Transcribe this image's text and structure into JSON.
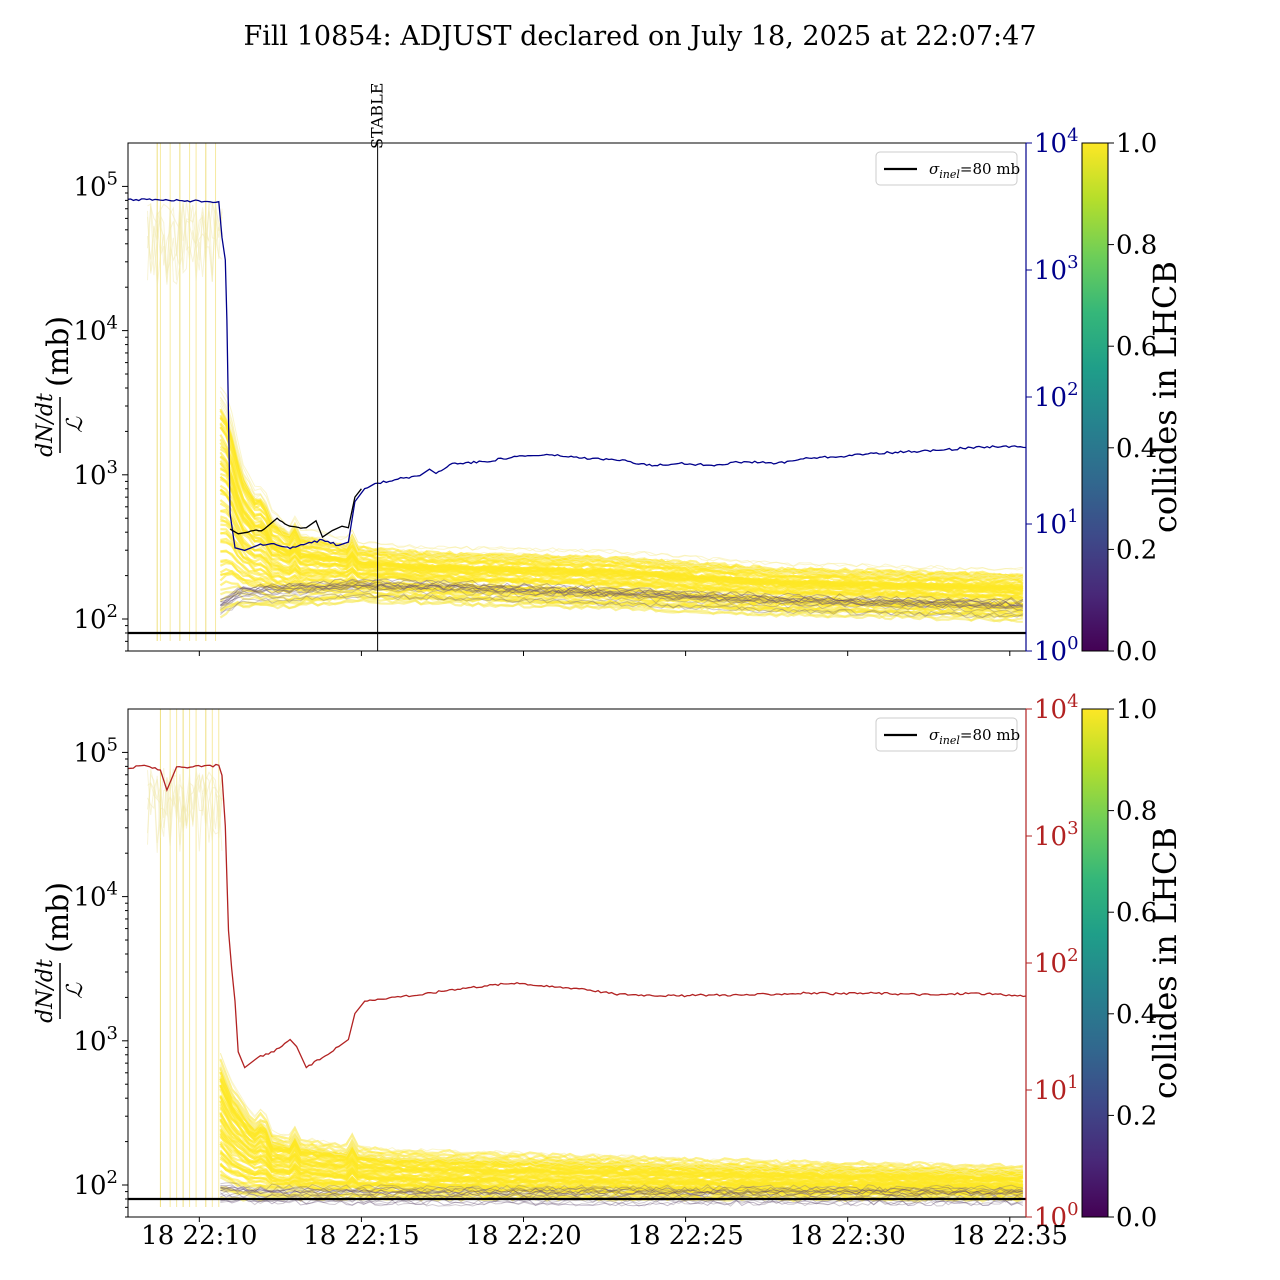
{
  "figure": {
    "title": "Fill 10854: ADJUST declared on July 18, 2025 at 22:07:47",
    "colors": {
      "top_right_axis": "#00008b",
      "bottom_right_axis": "#b22222",
      "reference_line": "#000000",
      "viridis": [
        "#440154",
        "#482878",
        "#3e4989",
        "#31688e",
        "#26828e",
        "#1f9e89",
        "#35b779",
        "#6ece58",
        "#b5de2b",
        "#fde725"
      ]
    }
  },
  "chart_data": [
    {
      "type": "line",
      "panel": "top",
      "ylabel_fraction_num": "dN/dt",
      "ylabel_fraction_den": "ℒ",
      "ylabel_unit": "(mb)",
      "yscale": "log",
      "ylim": [
        60,
        200000
      ],
      "yticks": [
        {
          "exp": "2",
          "value": 100
        },
        {
          "exp": "3",
          "value": 1000
        },
        {
          "exp": "4",
          "value": 10000
        },
        {
          "exp": "5",
          "value": 100000
        }
      ],
      "xlim_minutes": [
        0,
        27.7
      ],
      "x_time_labels": [],
      "xtick_minutes": [
        2.2,
        7.2,
        12.2,
        17.2,
        22.2,
        27.2
      ],
      "y2": {
        "scale": "log",
        "ylim": [
          1,
          10000
        ],
        "ticks": [
          {
            "exp": "0",
            "value": 1
          },
          {
            "exp": "1",
            "value": 10
          },
          {
            "exp": "2",
            "value": 100
          },
          {
            "exp": "3",
            "value": 1000
          },
          {
            "exp": "4",
            "value": 10000
          }
        ],
        "color": "#00008b"
      },
      "vline": {
        "label": "STABLE",
        "x_minute": 7.7
      },
      "hline": {
        "value": 80,
        "legend_label_sym": "σ",
        "legend_label_sub": "inel",
        "legend_label_rest": "=80 mb"
      },
      "series": [
        {
          "role": "secondary_axis",
          "color": "#00008b",
          "points": [
            [
              0,
              3600
            ],
            [
              1,
              3550
            ],
            [
              2,
              3500
            ],
            [
              2.8,
              3450
            ],
            [
              2.9,
              1800
            ],
            [
              3.0,
              1200
            ],
            [
              3.05,
              400
            ],
            [
              3.15,
              12
            ],
            [
              3.3,
              6.5
            ],
            [
              3.6,
              6.2
            ],
            [
              4.0,
              6.8
            ],
            [
              4.5,
              7.0
            ],
            [
              5.0,
              6.4
            ],
            [
              5.5,
              7.0
            ],
            [
              6.0,
              7.5
            ],
            [
              6.5,
              6.8
            ],
            [
              6.8,
              7.2
            ],
            [
              7.0,
              15
            ],
            [
              7.3,
              19
            ],
            [
              7.7,
              21
            ],
            [
              8.5,
              23
            ],
            [
              9.0,
              24
            ],
            [
              9.3,
              27
            ],
            [
              9.5,
              25
            ],
            [
              10,
              30
            ],
            [
              11,
              31
            ],
            [
              12,
              34
            ],
            [
              13,
              35
            ],
            [
              14,
              33
            ],
            [
              15,
              32
            ],
            [
              15.5,
              31
            ],
            [
              16,
              29
            ],
            [
              17,
              30
            ],
            [
              18,
              29
            ],
            [
              19,
              31
            ],
            [
              20,
              30
            ],
            [
              21,
              33
            ],
            [
              22,
              34
            ],
            [
              23,
              36
            ],
            [
              24,
              37
            ],
            [
              25,
              38
            ],
            [
              26,
              40
            ],
            [
              27,
              41
            ],
            [
              27.7,
              40
            ]
          ]
        },
        {
          "role": "primary_black",
          "color": "#000000",
          "points": [
            [
              3.15,
              420
            ],
            [
              3.4,
              390
            ],
            [
              3.7,
              400
            ],
            [
              4.2,
              420
            ],
            [
              4.6,
              500
            ],
            [
              5.0,
              440
            ],
            [
              5.5,
              430
            ],
            [
              5.8,
              480
            ],
            [
              6.0,
              370
            ],
            [
              6.3,
              410
            ],
            [
              6.6,
              440
            ],
            [
              6.8,
              430
            ],
            [
              7.0,
              700
            ],
            [
              7.2,
              800
            ]
          ]
        }
      ],
      "band": {
        "description": "many per-bunch traces",
        "start_minute": 2.85,
        "end_minute": 27.6,
        "upper": [
          [
            2.85,
            4000
          ],
          [
            3.1,
            3200
          ],
          [
            3.5,
            1200
          ],
          [
            4.2,
            600
          ],
          [
            5.0,
            420
          ],
          [
            6.0,
            380
          ],
          [
            7.0,
            330
          ],
          [
            9.0,
            300
          ],
          [
            12,
            290
          ],
          [
            15,
            280
          ],
          [
            20,
            230
          ],
          [
            27.6,
            210
          ]
        ],
        "lower": [
          [
            2.85,
            95
          ],
          [
            3.3,
            115
          ],
          [
            5.0,
            120
          ],
          [
            7.0,
            135
          ],
          [
            10,
            130
          ],
          [
            15,
            120
          ],
          [
            20,
            110
          ],
          [
            27.6,
            100
          ]
        ],
        "dark_center": [
          [
            2.85,
            120
          ],
          [
            3.5,
            150
          ],
          [
            5.0,
            155
          ],
          [
            7.0,
            165
          ],
          [
            10,
            160
          ],
          [
            15,
            145
          ],
          [
            20,
            130
          ],
          [
            27.6,
            120
          ]
        ],
        "spike_minutes": [
          0.9,
          1.0,
          1.3,
          1.6,
          1.9,
          2.1,
          2.4,
          2.7
        ]
      },
      "colorbar": {
        "label": "collides in LHCB",
        "ticks": [
          "0.0",
          "0.2",
          "0.4",
          "0.6",
          "0.8",
          "1.0"
        ]
      },
      "legend_position": "top-right"
    },
    {
      "type": "line",
      "panel": "bottom",
      "ylabel_fraction_num": "dN/dt",
      "ylabel_fraction_den": "ℒ",
      "ylabel_unit": "(mb)",
      "yscale": "log",
      "ylim": [
        60,
        200000
      ],
      "yticks": [
        {
          "exp": "2",
          "value": 100
        },
        {
          "exp": "3",
          "value": 1000
        },
        {
          "exp": "4",
          "value": 10000
        },
        {
          "exp": "5",
          "value": 100000
        }
      ],
      "xlim_minutes": [
        0,
        27.7
      ],
      "x_time_labels": [
        "18 22:10",
        "18 22:15",
        "18 22:20",
        "18 22:25",
        "18 22:30",
        "18 22:35"
      ],
      "xtick_minutes": [
        2.2,
        7.2,
        12.2,
        17.2,
        22.2,
        27.2
      ],
      "y2": {
        "scale": "log",
        "ylim": [
          1,
          10000
        ],
        "ticks": [
          {
            "exp": "0",
            "value": 1
          },
          {
            "exp": "1",
            "value": 10
          },
          {
            "exp": "2",
            "value": 100
          },
          {
            "exp": "3",
            "value": 1000
          },
          {
            "exp": "4",
            "value": 10000
          }
        ],
        "color": "#b22222"
      },
      "hline": {
        "value": 80,
        "legend_label_sym": "σ",
        "legend_label_sub": "inel",
        "legend_label_rest": "=80 mb"
      },
      "series": [
        {
          "role": "secondary_axis",
          "color": "#b22222",
          "points": [
            [
              0,
              3400
            ],
            [
              0.5,
              3600
            ],
            [
              1.0,
              3300
            ],
            [
              1.2,
              2300
            ],
            [
              1.5,
              3500
            ],
            [
              2.0,
              3500
            ],
            [
              2.8,
              3600
            ],
            [
              2.9,
              3000
            ],
            [
              3.0,
              1200
            ],
            [
              3.1,
              180
            ],
            [
              3.2,
              90
            ],
            [
              3.3,
              50
            ],
            [
              3.4,
              20
            ],
            [
              3.6,
              15
            ],
            [
              4.0,
              18
            ],
            [
              4.5,
              20
            ],
            [
              5.0,
              25
            ],
            [
              5.2,
              22
            ],
            [
              5.5,
              15
            ],
            [
              6.0,
              18
            ],
            [
              6.5,
              22
            ],
            [
              6.8,
              25
            ],
            [
              7.0,
              40
            ],
            [
              7.3,
              50
            ],
            [
              7.7,
              52
            ],
            [
              8.5,
              55
            ],
            [
              9,
              56
            ],
            [
              10,
              62
            ],
            [
              11,
              66
            ],
            [
              12,
              70
            ],
            [
              13,
              65
            ],
            [
              14,
              63
            ],
            [
              15,
              57
            ],
            [
              16,
              56
            ],
            [
              17,
              55
            ],
            [
              18,
              56
            ],
            [
              19,
              56
            ],
            [
              20,
              57
            ],
            [
              21,
              58
            ],
            [
              22,
              57
            ],
            [
              23,
              58
            ],
            [
              24,
              57
            ],
            [
              25,
              56
            ],
            [
              26,
              58
            ],
            [
              27,
              56
            ],
            [
              27.7,
              55
            ]
          ]
        }
      ],
      "band": {
        "description": "many per-bunch traces",
        "start_minute": 2.85,
        "end_minute": 27.6,
        "upper": [
          [
            2.85,
            800
          ],
          [
            3.2,
            500
          ],
          [
            3.8,
            300
          ],
          [
            4.5,
            220
          ],
          [
            5.5,
            200
          ],
          [
            7.0,
            180
          ],
          [
            8,
            170
          ],
          [
            12,
            160
          ],
          [
            16,
            150
          ],
          [
            20,
            140
          ],
          [
            27.6,
            130
          ]
        ],
        "lower": [
          [
            2.85,
            85
          ],
          [
            3.3,
            82
          ],
          [
            5.0,
            82
          ],
          [
            10,
            82
          ],
          [
            20,
            82
          ],
          [
            27.6,
            82
          ]
        ],
        "dark_center": [
          [
            2.85,
            90
          ],
          [
            4,
            86
          ],
          [
            8,
            85
          ],
          [
            15,
            85
          ],
          [
            27.6,
            85
          ]
        ],
        "spike_minutes": [
          1.0,
          1.3,
          1.5,
          1.7,
          1.9,
          2.1,
          2.4,
          2.6,
          2.8
        ]
      },
      "colorbar": {
        "label": "collides in LHCB",
        "ticks": [
          "0.0",
          "0.2",
          "0.4",
          "0.6",
          "0.8",
          "1.0"
        ]
      },
      "legend_position": "top-right"
    }
  ]
}
